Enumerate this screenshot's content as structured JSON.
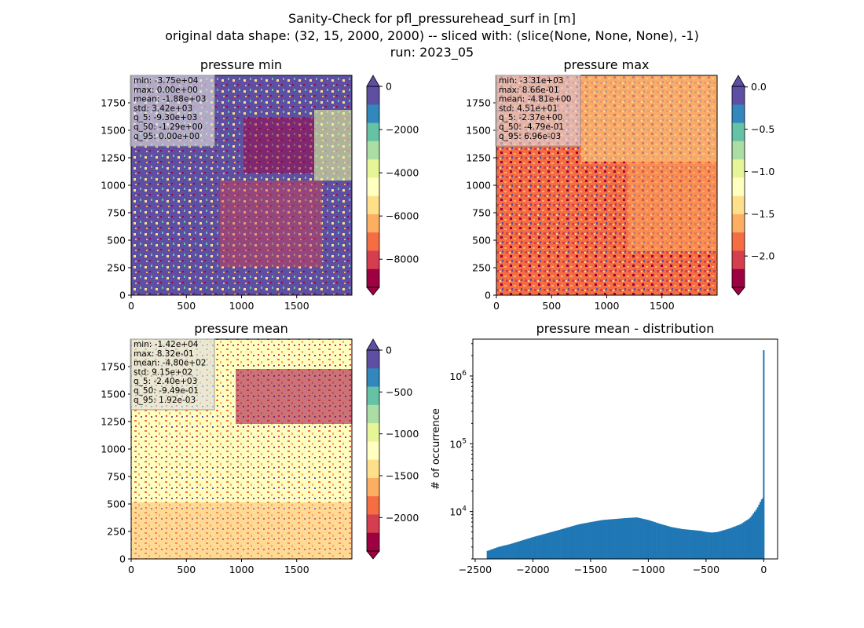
{
  "figure": {
    "title_lines": [
      "Sanity-Check for pfl_pressurehead_surf in [m]",
      "original data shape: (32, 15, 2000, 2000) -- sliced with: (slice(None, None, None), -1)",
      "run: 2023_05"
    ]
  },
  "colormap": "Spectral",
  "colors": {
    "spectral": [
      "#9e0142",
      "#d53e4f",
      "#f46d43",
      "#fdae61",
      "#fee08b",
      "#ffffbf",
      "#e6f598",
      "#abdda4",
      "#66c2a5",
      "#3288bd",
      "#5e4fa2"
    ],
    "hist_bar": "#1f77b4"
  },
  "chart_data": [
    {
      "type": "heatmap",
      "title": "pressure min",
      "x_ticks": [
        "0",
        "500",
        "1000",
        "1500"
      ],
      "y_ticks": [
        "0",
        "250",
        "500",
        "750",
        "1000",
        "1250",
        "1500",
        "1750"
      ],
      "xlim": [
        0,
        2000
      ],
      "ylim": [
        0,
        2000
      ],
      "colorbar": {
        "ticks": [
          "0",
          "−2000",
          "−4000",
          "−6000",
          "−8000"
        ],
        "tick_values": [
          0,
          -2000,
          -4000,
          -6000,
          -8000
        ],
        "vmin": -9300,
        "vmax": 0,
        "extend": "both"
      },
      "stats": [
        "min: -3.75e+04",
        "max: 0.00e+00",
        "mean: -1.88e+03",
        "std: 3.42e+03",
        "q_5: -9.30e+03",
        "q_50: -1.29e+00",
        "q_95: 0.00e+00"
      ]
    },
    {
      "type": "heatmap",
      "title": "pressure max",
      "x_ticks": [
        "0",
        "500",
        "1000",
        "1500"
      ],
      "y_ticks": [
        "0",
        "250",
        "500",
        "750",
        "1000",
        "1250",
        "1500",
        "1750"
      ],
      "xlim": [
        0,
        2000
      ],
      "ylim": [
        0,
        2000
      ],
      "colorbar": {
        "ticks": [
          "0.0",
          "−0.5",
          "−1.0",
          "−1.5",
          "−2.0"
        ],
        "tick_values": [
          0,
          -0.5,
          -1.0,
          -1.5,
          -2.0
        ],
        "vmin": -2.37,
        "vmax": 0.00696,
        "extend": "both"
      },
      "stats": [
        "min: -3.31e+03",
        "max: 8.66e-01",
        "mean: -4.81e+00",
        "std: 4.51e+01",
        "q_5: -2.37e+00",
        "q_50: -4.79e-01",
        "q_95: 6.96e-03"
      ]
    },
    {
      "type": "heatmap",
      "title": "pressure mean",
      "x_ticks": [
        "0",
        "500",
        "1000",
        "1500"
      ],
      "y_ticks": [
        "0",
        "250",
        "500",
        "750",
        "1000",
        "1250",
        "1500",
        "1750"
      ],
      "xlim": [
        0,
        2000
      ],
      "ylim": [
        0,
        2000
      ],
      "colorbar": {
        "ticks": [
          "0",
          "−500",
          "−1000",
          "−1500",
          "−2000"
        ],
        "tick_values": [
          0,
          -500,
          -1000,
          -1500,
          -2000
        ],
        "vmin": -2400,
        "vmax": 0.00192,
        "extend": "both"
      },
      "stats": [
        "min: -1.42e+04",
        "max: 8.32e-01",
        "mean: -4.80e+02",
        "std: 9.15e+02",
        "q_5: -2.40e+03",
        "q_50: -9.49e-01",
        "q_95: 1.92e-03"
      ]
    },
    {
      "type": "bar",
      "title": "pressure mean - distribution",
      "ylabel": "# of occurrence",
      "yscale": "log",
      "xlim": [
        -2520,
        120
      ],
      "ylim": [
        2000,
        3500000
      ],
      "x_ticks": [
        "−2500",
        "−2000",
        "−1500",
        "−1000",
        "−500",
        "0"
      ],
      "x_tick_values": [
        -2500,
        -2000,
        -1500,
        -1000,
        -500,
        0
      ],
      "y_ticks": [
        {
          "base": "10",
          "exp": "4",
          "value": 10000
        },
        {
          "base": "10",
          "exp": "5",
          "value": 100000
        },
        {
          "base": "10",
          "exp": "6",
          "value": 1000000
        }
      ],
      "bin_range": [
        -2400,
        0
      ],
      "profile": [
        [
          -2400,
          2600
        ],
        [
          -2300,
          3000
        ],
        [
          -2200,
          3300
        ],
        [
          -2000,
          4200
        ],
        [
          -1800,
          5200
        ],
        [
          -1600,
          6500
        ],
        [
          -1400,
          7500
        ],
        [
          -1200,
          8000
        ],
        [
          -1100,
          8200
        ],
        [
          -1000,
          7500
        ],
        [
          -900,
          6600
        ],
        [
          -800,
          5900
        ],
        [
          -700,
          5500
        ],
        [
          -600,
          5300
        ],
        [
          -550,
          5200
        ],
        [
          -500,
          5000
        ],
        [
          -450,
          4900
        ],
        [
          -400,
          5000
        ],
        [
          -300,
          5600
        ],
        [
          -200,
          6500
        ],
        [
          -120,
          8000
        ],
        [
          -60,
          11000
        ],
        [
          -20,
          15000
        ],
        [
          -5,
          16000
        ]
      ],
      "spike": {
        "x": 0,
        "count": 2400000
      }
    }
  ]
}
